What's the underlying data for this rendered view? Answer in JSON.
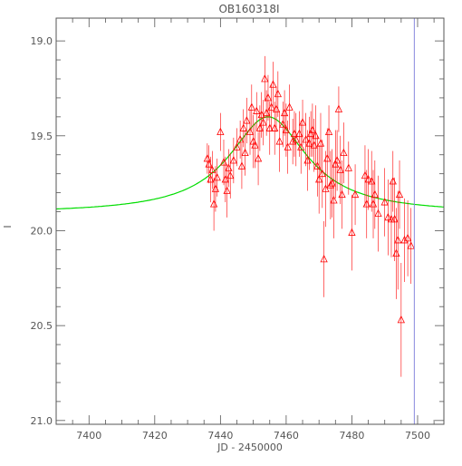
{
  "chart_data": {
    "type": "scatter",
    "title": "OB160318I",
    "xlabel": "JD - 2450000",
    "ylabel": "I",
    "xlim": [
      7390,
      7508
    ],
    "ylim": [
      21.02,
      18.88
    ],
    "y_inverted": true,
    "x_ticks": [
      7400,
      7420,
      7440,
      7460,
      7480,
      7500
    ],
    "x_tick_labels": [
      "7400",
      "7420",
      "7440",
      "7460",
      "7480",
      "7500"
    ],
    "y_ticks": [
      19.0,
      19.5,
      20.0,
      20.5,
      21.0
    ],
    "y_tick_labels": [
      "19.0",
      "19.5",
      "20.0",
      "20.5",
      "21.0"
    ],
    "grid": false,
    "colors": {
      "points": "#ff0000",
      "model": "#00dd00",
      "marker_line": "#8888dd",
      "axes": "#555555"
    },
    "series": [
      {
        "marker": "triangle",
        "x": [
          7436.0,
          7436.5,
          7437.0,
          7437.5,
          7438.0,
          7438.5,
          7439.0,
          7440.0,
          7441.0,
          7441.5,
          7442.0,
          7442.5,
          7443.0,
          7444.0,
          7445.0,
          7446.0,
          7446.5,
          7447.0,
          7447.5,
          7448.0,
          7449.0,
          7449.5,
          7450.0,
          7450.5,
          7451.0,
          7451.5,
          7452.0,
          7452.5,
          7453.0,
          7453.5,
          7454.0,
          7454.5,
          7455.0,
          7455.5,
          7456.0,
          7456.5,
          7457.0,
          7457.5,
          7458.0,
          7459.0,
          7459.5,
          7460.0,
          7460.5,
          7461.0,
          7462.0,
          7462.5,
          7463.0,
          7464.0,
          7464.5,
          7465.0,
          7466.0,
          7466.5,
          7467.0,
          7467.5,
          7468.0,
          7468.5,
          7469.0,
          7469.5,
          7470.0,
          7470.5,
          7471.0,
          7471.5,
          7472.0,
          7472.5,
          7473.0,
          7473.5,
          7474.0,
          7474.5,
          7475.0,
          7475.5,
          7476.0,
          7476.5,
          7477.0,
          7477.5,
          7479.0,
          7480.0,
          7481.0,
          7484.0,
          7484.5,
          7485.0,
          7486.0,
          7486.5,
          7487.0,
          7488.0,
          7490.0,
          7491.0,
          7492.0,
          7492.5,
          7493.0,
          7493.5,
          7494.0,
          7494.5,
          7495.0,
          7496.0,
          7497.0,
          7498.0
        ],
        "y": [
          19.62,
          19.65,
          19.73,
          19.68,
          19.86,
          19.78,
          19.72,
          19.48,
          19.64,
          19.73,
          19.79,
          19.67,
          19.71,
          19.63,
          19.56,
          19.52,
          19.66,
          19.46,
          19.59,
          19.42,
          19.48,
          19.35,
          19.53,
          19.55,
          19.37,
          19.62,
          19.46,
          19.39,
          19.43,
          19.2,
          19.38,
          19.3,
          19.46,
          19.35,
          19.23,
          19.46,
          19.36,
          19.28,
          19.53,
          19.44,
          19.38,
          19.47,
          19.56,
          19.35,
          19.53,
          19.49,
          19.52,
          19.49,
          19.56,
          19.43,
          19.52,
          19.63,
          19.54,
          19.49,
          19.47,
          19.55,
          19.5,
          19.66,
          19.73,
          19.54,
          19.7,
          20.15,
          19.78,
          19.62,
          19.48,
          19.76,
          19.75,
          19.84,
          19.65,
          19.63,
          19.36,
          19.68,
          19.81,
          19.59,
          19.67,
          20.01,
          19.81,
          19.71,
          19.86,
          19.73,
          19.74,
          19.86,
          19.81,
          19.91,
          19.85,
          19.93,
          19.94,
          19.74,
          19.94,
          20.12,
          20.05,
          19.81,
          20.47,
          20.05,
          20.04,
          20.08
        ],
        "err": [
          0.08,
          0.1,
          0.12,
          0.1,
          0.14,
          0.12,
          0.1,
          0.1,
          0.12,
          0.12,
          0.14,
          0.1,
          0.12,
          0.12,
          0.1,
          0.1,
          0.12,
          0.1,
          0.12,
          0.12,
          0.12,
          0.12,
          0.14,
          0.12,
          0.1,
          0.14,
          0.12,
          0.12,
          0.12,
          0.12,
          0.12,
          0.12,
          0.14,
          0.12,
          0.12,
          0.14,
          0.12,
          0.12,
          0.16,
          0.12,
          0.12,
          0.14,
          0.14,
          0.12,
          0.12,
          0.12,
          0.14,
          0.12,
          0.14,
          0.12,
          0.14,
          0.16,
          0.14,
          0.12,
          0.14,
          0.14,
          0.16,
          0.16,
          0.18,
          0.16,
          0.18,
          0.2,
          0.2,
          0.16,
          0.14,
          0.18,
          0.18,
          0.2,
          0.18,
          0.16,
          0.12,
          0.18,
          0.18,
          0.16,
          0.14,
          0.2,
          0.16,
          0.16,
          0.18,
          0.16,
          0.16,
          0.18,
          0.18,
          0.2,
          0.18,
          0.2,
          0.2,
          0.16,
          0.22,
          0.24,
          0.26,
          0.18,
          0.3,
          0.22,
          0.2,
          0.2
        ]
      }
    ],
    "model": {
      "baseline": 19.91,
      "amplitude": 0.51,
      "t0": 7454.5,
      "width": 14.5
    },
    "vertical_line_x": 7499.0
  }
}
